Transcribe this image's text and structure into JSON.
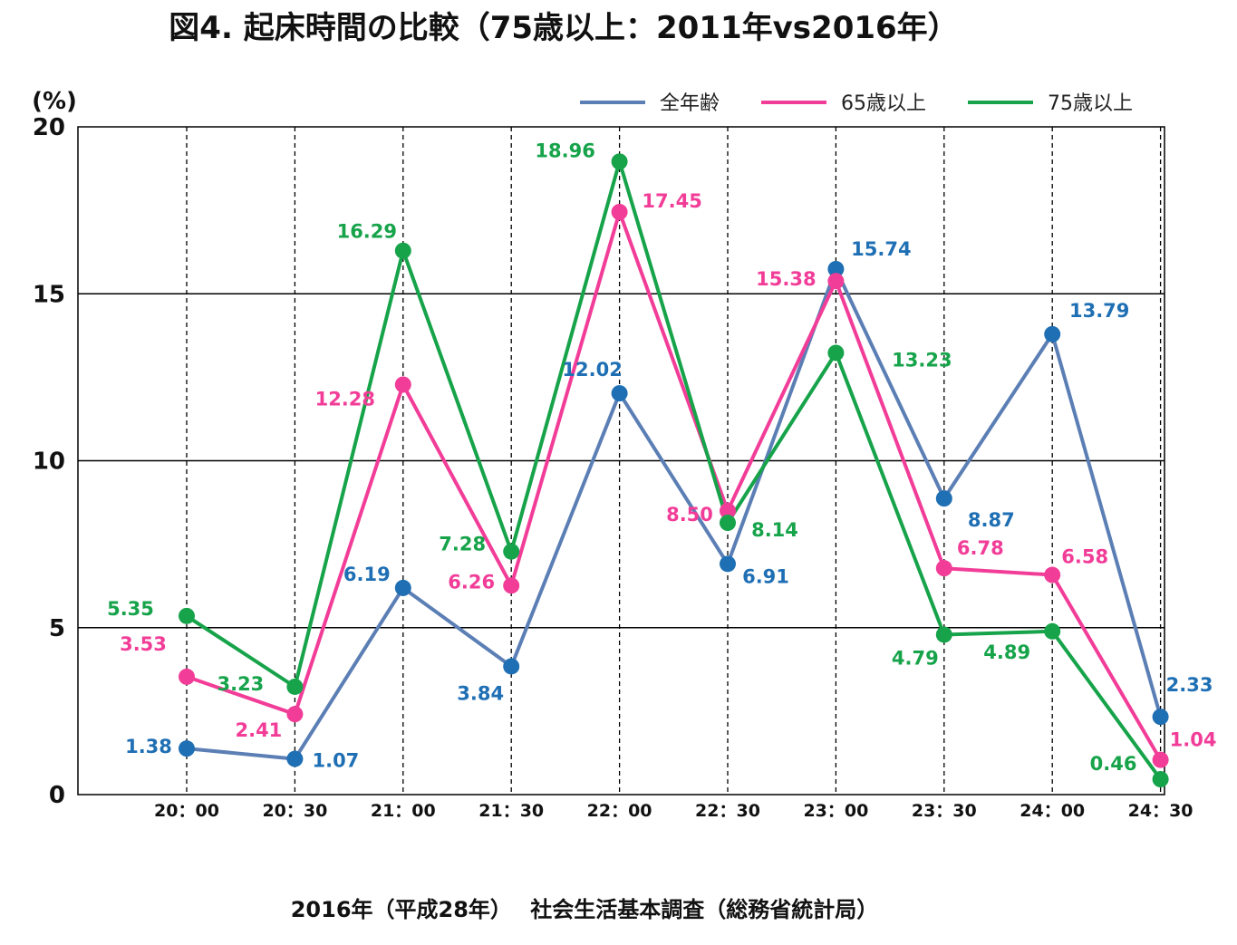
{
  "chart_data": {
    "type": "line",
    "title": "図4.  起床時間の比較（75歳以上：2011年vs2016年）",
    "ylabel": "(%)",
    "xlabel": "",
    "ylim": [
      0,
      20
    ],
    "yticks": [
      0,
      5,
      10,
      15,
      20
    ],
    "grid": "horizontal solid at y ticks; vertical dashed at each category",
    "legend_placement": "top-right",
    "categories": [
      "20：00",
      "20：30",
      "21：00",
      "21：30",
      "22：00",
      "22：30",
      "23：00",
      "23：30",
      "24：00",
      "24：30"
    ],
    "series": [
      {
        "name": "全年齢",
        "color": "#5b7fb5",
        "label_color": "#1f6fb4",
        "values": [
          1.38,
          1.07,
          6.19,
          3.84,
          12.02,
          6.91,
          15.74,
          8.87,
          13.79,
          2.33
        ]
      },
      {
        "name": "65歳以上",
        "color": "#f23d98",
        "label_color": "#f23d98",
        "values": [
          3.53,
          2.41,
          12.28,
          6.26,
          17.45,
          8.5,
          15.38,
          6.78,
          6.58,
          1.04
        ]
      },
      {
        "name": "75歳以上",
        "color": "#16a34a",
        "label_color": "#16a34a",
        "values": [
          5.35,
          3.23,
          16.29,
          7.28,
          18.96,
          8.14,
          13.23,
          4.79,
          4.89,
          0.46
        ]
      }
    ]
  },
  "footer": "2016年（平成28年）　 社会生活基本調査（総務省統計局）"
}
